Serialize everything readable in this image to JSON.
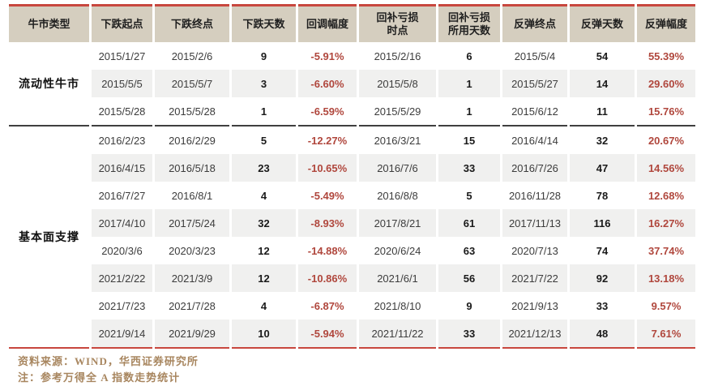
{
  "colors": {
    "accent_red": "#c8473e",
    "header_bg": "#d5cebf",
    "negative_positive_pct_red": "#b0473d",
    "stripe_gray": "#f0f0ef",
    "group_divider": "#404040",
    "footer_gold": "#a8865f"
  },
  "chart_data": {
    "type": "table",
    "title": "",
    "columns": [
      "牛市类型",
      "下跌起点",
      "下跌终点",
      "下跌天数",
      "回调幅度",
      "回补亏损\n时点",
      "回补亏损\n所用天数",
      "反弹终点",
      "反弹天数",
      "反弹幅度"
    ],
    "col_styles": [
      "date",
      "date",
      "num",
      "pct",
      "date",
      "num",
      "date",
      "num",
      "pct"
    ],
    "groups": [
      {
        "label": "流动性牛市",
        "rows": [
          [
            "2015/1/27",
            "2015/2/6",
            "9",
            "-5.91%",
            "2015/2/16",
            "6",
            "2015/5/4",
            "54",
            "55.39%"
          ],
          [
            "2015/5/5",
            "2015/5/7",
            "3",
            "-6.60%",
            "2015/5/8",
            "1",
            "2015/5/27",
            "14",
            "29.60%"
          ],
          [
            "2015/5/28",
            "2015/5/28",
            "1",
            "-6.59%",
            "2015/5/29",
            "1",
            "2015/6/12",
            "11",
            "15.76%"
          ]
        ]
      },
      {
        "label": "基本面支撑",
        "rows": [
          [
            "2016/2/23",
            "2016/2/29",
            "5",
            "-12.27%",
            "2016/3/21",
            "15",
            "2016/4/14",
            "32",
            "20.67%"
          ],
          [
            "2016/4/15",
            "2016/5/18",
            "23",
            "-10.65%",
            "2016/7/6",
            "33",
            "2016/7/26",
            "47",
            "14.56%"
          ],
          [
            "2016/7/27",
            "2016/8/1",
            "4",
            "-5.49%",
            "2016/8/8",
            "5",
            "2016/11/28",
            "78",
            "12.68%"
          ],
          [
            "2017/4/10",
            "2017/5/24",
            "32",
            "-8.93%",
            "2017/8/21",
            "61",
            "2017/11/13",
            "116",
            "16.27%"
          ],
          [
            "2020/3/6",
            "2020/3/23",
            "12",
            "-14.88%",
            "2020/6/24",
            "63",
            "2020/7/13",
            "74",
            "37.74%"
          ],
          [
            "2021/2/22",
            "2021/3/9",
            "12",
            "-10.86%",
            "2021/6/1",
            "56",
            "2021/7/22",
            "92",
            "13.18%"
          ],
          [
            "2021/7/23",
            "2021/7/28",
            "4",
            "-6.87%",
            "2021/8/10",
            "9",
            "2021/9/13",
            "33",
            "9.57%"
          ],
          [
            "2021/9/14",
            "2021/9/29",
            "10",
            "-5.94%",
            "2021/11/22",
            "33",
            "2021/12/13",
            "48",
            "7.61%"
          ]
        ]
      }
    ]
  },
  "footer": {
    "source": "资料来源：WIND，华西证券研究所",
    "note": "注：参考万得全 A 指数走势统计"
  }
}
